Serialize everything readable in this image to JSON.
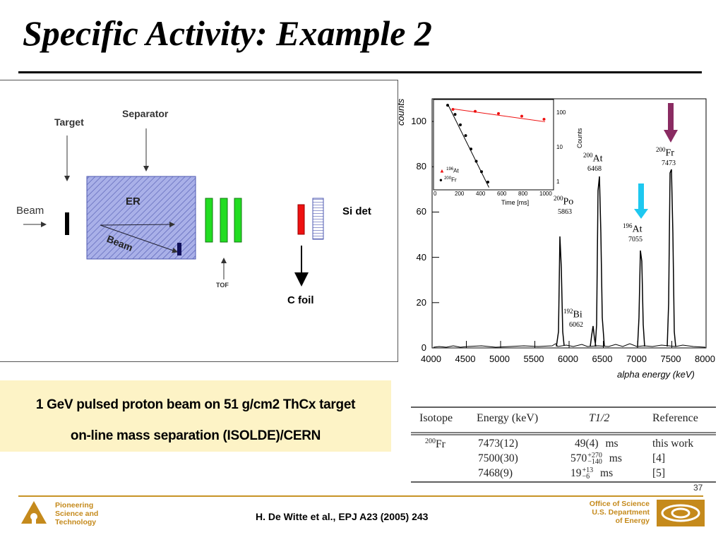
{
  "slide": {
    "title": "Specific Activity: Example 2",
    "page_number": "37",
    "citation": "H. De Witte et al., EPJ A23 (2005) 243",
    "footer_left": [
      "Pioneering",
      "Science and",
      "Technology"
    ],
    "footer_right": [
      "Office of Science",
      "U.S. Department",
      "of Energy"
    ]
  },
  "diagram": {
    "target": "Target",
    "separator": "Separator",
    "beam_left": "Beam",
    "er": "ER",
    "beam_inner": "Beam",
    "tof": "TOF",
    "si_det": "Si det",
    "c_foil": "C foil",
    "colors": {
      "separator_fill": "#a9b0e8",
      "tof_green": "#22dd22",
      "foil_red": "#ee1111"
    }
  },
  "callout": {
    "line1": "1 GeV pulsed proton beam on 51 g/cm2 ThCx target",
    "line2": "on-line mass separation (ISOLDE)/CERN",
    "background": "#fdf3c6"
  },
  "spectrum": {
    "y_axis_label": "counts",
    "x_axis_label": "alpha energy (keV)",
    "y_ticks": [
      "0",
      "20",
      "40",
      "60",
      "80",
      "100"
    ],
    "x_ticks": [
      "4000",
      "4500",
      "5000",
      "5500",
      "6000",
      "6500",
      "7000",
      "7500",
      "8000"
    ],
    "peaks": [
      {
        "mass": "200",
        "element": "Po",
        "energy": "5863"
      },
      {
        "mass": "192",
        "element": "Bi",
        "energy": "6062"
      },
      {
        "mass": "200",
        "element": "At",
        "energy": "6468"
      },
      {
        "mass": "196",
        "element": "At",
        "energy": "7055"
      },
      {
        "mass": "200",
        "element": "Fr",
        "energy": "7473"
      }
    ],
    "arrow_colors": {
      "fr": "#8a2b62",
      "at196": "#1ec8f0"
    },
    "inset": {
      "y_label": "Counts",
      "x_label": "Time [ms]",
      "y_ticks": [
        "1",
        "10",
        "100"
      ],
      "x_ticks": [
        "0",
        "200",
        "400",
        "600",
        "800",
        "1000"
      ],
      "legend": [
        {
          "mass": "196",
          "element": "At"
        },
        {
          "mass": "200",
          "element": "Fr"
        }
      ]
    }
  },
  "table": {
    "headers": [
      "Isotope",
      "Energy (keV)",
      "T1/2",
      "Reference"
    ],
    "isotope": {
      "mass": "200",
      "element": "Fr"
    },
    "rows": [
      {
        "energy": "7473(12)",
        "t_half": "49(4)",
        "t_up": "",
        "t_down": "",
        "unit": "ms",
        "ref": "this work"
      },
      {
        "energy": "7500(30)",
        "t_half": "570",
        "t_up": "+270",
        "t_down": "−140",
        "unit": "ms",
        "ref": "[4]"
      },
      {
        "energy": "7468(9)",
        "t_half": "19",
        "t_up": "+13",
        "t_down": "−6",
        "unit": "ms",
        "ref": "[5]"
      }
    ]
  }
}
